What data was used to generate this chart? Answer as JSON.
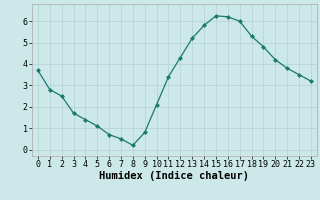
{
  "x": [
    0,
    1,
    2,
    3,
    4,
    5,
    6,
    7,
    8,
    9,
    10,
    11,
    12,
    13,
    14,
    15,
    16,
    17,
    18,
    19,
    20,
    21,
    22,
    23
  ],
  "y": [
    3.7,
    2.8,
    2.5,
    1.7,
    1.4,
    1.1,
    0.7,
    0.5,
    0.2,
    0.8,
    2.1,
    3.4,
    4.3,
    5.2,
    5.8,
    6.25,
    6.2,
    6.0,
    5.3,
    4.8,
    4.2,
    3.8,
    3.5,
    3.2
  ],
  "line_color": "#1a7a6e",
  "marker": "D",
  "marker_size": 2.0,
  "bg_color": "#cce8e8",
  "grid_color": "#b8d4d4",
  "xlabel": "Humidex (Indice chaleur)",
  "ylim": [
    -0.3,
    6.8
  ],
  "xlim": [
    -0.5,
    23.5
  ],
  "yticks": [
    0,
    1,
    2,
    3,
    4,
    5,
    6
  ],
  "xticks": [
    0,
    1,
    2,
    3,
    4,
    5,
    6,
    7,
    8,
    9,
    10,
    11,
    12,
    13,
    14,
    15,
    16,
    17,
    18,
    19,
    20,
    21,
    22,
    23
  ],
  "xlabel_fontsize": 7.5,
  "tick_fontsize": 6.0
}
